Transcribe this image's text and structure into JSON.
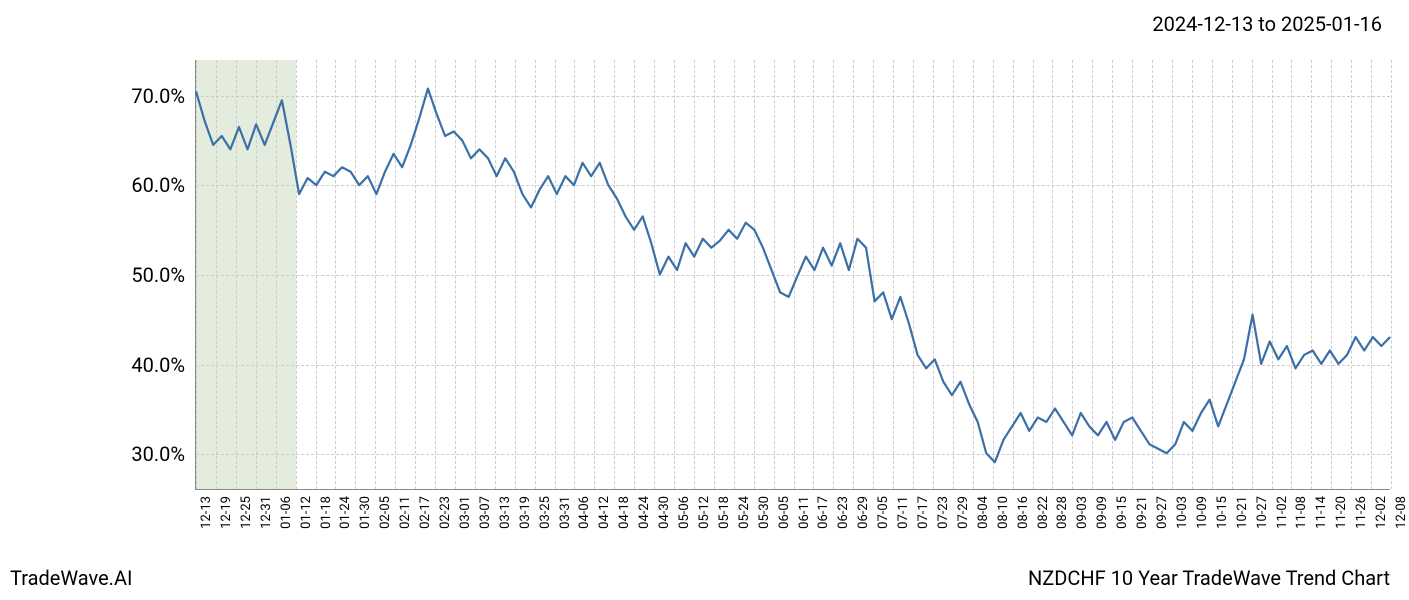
{
  "header": {
    "date_range": "2024-12-13 to 2025-01-16"
  },
  "footer": {
    "left": "TradeWave.AI",
    "right": "NZDCHF 10 Year TradeWave Trend Chart"
  },
  "chart": {
    "type": "line",
    "background_color": "#ffffff",
    "grid_color": "#cccccc",
    "axis_color": "#888888",
    "highlight": {
      "start_index": 0,
      "end_index": 5,
      "color": "#d9e5ce",
      "opacity": 0.7
    },
    "y_axis": {
      "min": 26,
      "max": 74,
      "ticks": [
        30,
        40,
        50,
        60,
        70
      ],
      "tick_labels": [
        "30.0%",
        "40.0%",
        "50.0%",
        "60.0%",
        "70.0%"
      ],
      "label_fontsize": 20,
      "label_color": "#000000"
    },
    "x_axis": {
      "categories": [
        "12-13",
        "12-19",
        "12-25",
        "12-31",
        "01-06",
        "01-12",
        "01-18",
        "01-24",
        "01-30",
        "02-05",
        "02-11",
        "02-17",
        "02-23",
        "03-01",
        "03-07",
        "03-13",
        "03-19",
        "03-25",
        "03-31",
        "04-06",
        "04-12",
        "04-18",
        "04-24",
        "04-30",
        "05-06",
        "05-12",
        "05-18",
        "05-24",
        "05-30",
        "06-05",
        "06-11",
        "06-17",
        "06-23",
        "06-29",
        "07-05",
        "07-11",
        "07-17",
        "07-23",
        "07-29",
        "08-04",
        "08-10",
        "08-16",
        "08-22",
        "08-28",
        "09-03",
        "09-09",
        "09-15",
        "09-21",
        "09-27",
        "10-03",
        "10-09",
        "10-15",
        "10-21",
        "10-27",
        "11-02",
        "11-08",
        "11-14",
        "11-20",
        "11-26",
        "12-02",
        "12-08"
      ],
      "label_fontsize": 13,
      "label_color": "#000000"
    },
    "series": [
      {
        "name": "trend",
        "color": "#3a6fa8",
        "line_width": 2.2,
        "values": [
          70.5,
          67.2,
          64.5,
          65.5,
          64.0,
          66.5,
          64.0,
          66.8,
          64.5,
          67.0,
          69.5,
          64.5,
          59.0,
          60.8,
          60.0,
          61.5,
          61.0,
          62.0,
          61.5,
          60.0,
          61.0,
          59.0,
          61.5,
          63.5,
          62.0,
          64.5,
          67.5,
          70.8,
          68.0,
          65.5,
          66.0,
          65.0,
          63.0,
          64.0,
          63.0,
          61.0,
          63.0,
          61.5,
          59.0,
          57.5,
          59.5,
          61.0,
          59.0,
          61.0,
          60.0,
          62.5,
          61.0,
          62.5,
          60.0,
          58.5,
          56.5,
          55.0,
          56.5,
          53.5,
          50.0,
          52.0,
          50.5,
          53.5,
          52.0,
          54.0,
          53.0,
          53.8,
          55.0,
          54.0,
          55.8,
          55.0,
          53.0,
          50.5,
          48.0,
          47.5,
          49.8,
          52.0,
          50.5,
          53.0,
          51.0,
          53.5,
          50.5,
          54.0,
          53.0,
          47.0,
          48.0,
          45.0,
          47.5,
          44.5,
          41.0,
          39.5,
          40.5,
          38.0,
          36.5,
          38.0,
          35.5,
          33.5,
          30.0,
          29.0,
          31.5,
          33.0,
          34.5,
          32.5,
          34.0,
          33.5,
          35.0,
          33.5,
          32.0,
          34.5,
          33.0,
          32.0,
          33.5,
          31.5,
          33.5,
          34.0,
          32.5,
          31.0,
          30.5,
          30.0,
          31.0,
          33.5,
          32.5,
          34.5,
          36.0,
          33.0,
          35.5,
          38.0,
          40.5,
          45.5,
          40.0,
          42.5,
          40.5,
          42.0,
          39.5,
          41.0,
          41.5,
          40.0,
          41.5,
          40.0,
          41.0,
          43.0,
          41.5,
          43.0,
          42.0,
          43.0
        ]
      }
    ]
  }
}
